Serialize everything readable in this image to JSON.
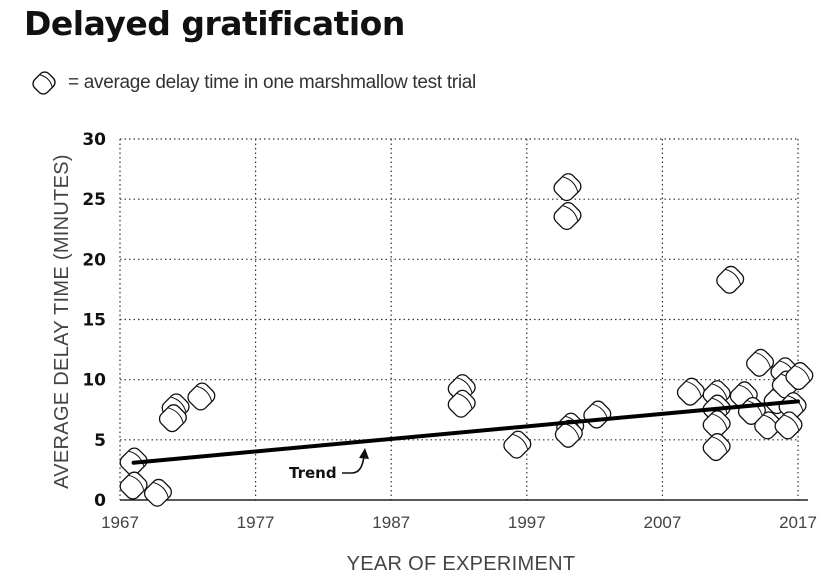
{
  "title": "Delayed gratification",
  "legend": {
    "icon": "marshmallow-icon",
    "text": "= average delay time in one marshmallow test trial"
  },
  "chart_data": {
    "type": "scatter",
    "title": "Delayed gratification",
    "xlabel": "YEAR OF EXPERIMENT",
    "ylabel": "AVERAGE DELAY TIME (MINUTES)",
    "xlim": [
      1967,
      2017
    ],
    "ylim": [
      0,
      30
    ],
    "xticks": [
      "1967",
      "1977",
      "1987",
      "1997",
      "2007",
      "2017"
    ],
    "yticks": [
      "0",
      "5",
      "10",
      "15",
      "20",
      "25",
      "30"
    ],
    "grid": true,
    "colors": {
      "ink": "#111111",
      "grid": "#333333",
      "marker_fill": "#ffffff"
    },
    "points": [
      {
        "x": 1968.0,
        "y": 3.2
      },
      {
        "x": 1968.0,
        "y": 1.2
      },
      {
        "x": 1969.8,
        "y": 0.6
      },
      {
        "x": 1971.1,
        "y": 7.7
      },
      {
        "x": 1970.9,
        "y": 6.8
      },
      {
        "x": 1973.0,
        "y": 8.6
      },
      {
        "x": 1992.2,
        "y": 9.3
      },
      {
        "x": 1992.2,
        "y": 8.0
      },
      {
        "x": 1996.3,
        "y": 4.6
      },
      {
        "x": 2000.2,
        "y": 6.1
      },
      {
        "x": 2000.1,
        "y": 5.5
      },
      {
        "x": 2002.2,
        "y": 7.1
      },
      {
        "x": 2000.0,
        "y": 26.0
      },
      {
        "x": 2000.0,
        "y": 23.6
      },
      {
        "x": 2012.0,
        "y": 18.3
      },
      {
        "x": 2009.1,
        "y": 9.0
      },
      {
        "x": 2011.0,
        "y": 8.8
      },
      {
        "x": 2011.0,
        "y": 7.6
      },
      {
        "x": 2011.0,
        "y": 6.3
      },
      {
        "x": 2011.0,
        "y": 4.4
      },
      {
        "x": 2013.0,
        "y": 8.7
      },
      {
        "x": 2013.6,
        "y": 7.4
      },
      {
        "x": 2014.2,
        "y": 11.4
      },
      {
        "x": 2015.5,
        "y": 8.3
      },
      {
        "x": 2014.8,
        "y": 6.2
      },
      {
        "x": 2016.0,
        "y": 10.7
      },
      {
        "x": 2016.1,
        "y": 9.6
      },
      {
        "x": 2017.1,
        "y": 10.3
      },
      {
        "x": 2016.6,
        "y": 7.8
      },
      {
        "x": 2016.3,
        "y": 6.2
      }
    ],
    "trend": {
      "label": "Trend",
      "start": {
        "x": 1968.0,
        "y": 3.1
      },
      "end": {
        "x": 2017.0,
        "y": 8.2
      }
    }
  }
}
